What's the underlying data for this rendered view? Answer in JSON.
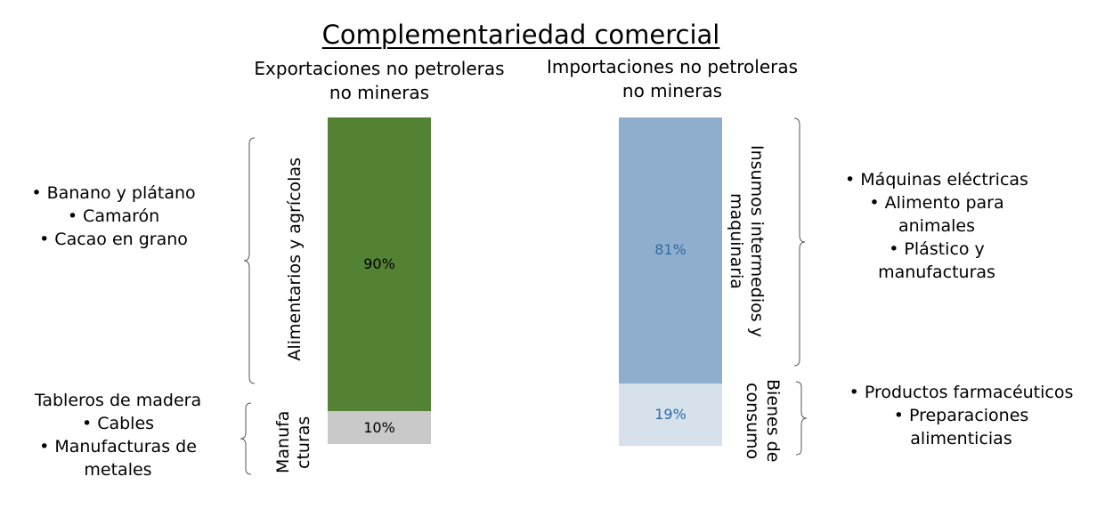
{
  "chart_data": {
    "type": "bar",
    "title": "Complementariedad comercial",
    "stacked": true,
    "normalized_percent": true,
    "bars": [
      {
        "name": "Exportaciones no petroleras no mineras",
        "segments": [
          {
            "name": "Alimentarios y agrícolas",
            "value": 90,
            "label": "90%",
            "color": "#548235"
          },
          {
            "name": "Manufacturas",
            "display_name": "Manufa cturas",
            "value": 10,
            "label": "10%",
            "color": "#c9c9c9"
          }
        ]
      },
      {
        "name": "Importaciones no petroleras no mineras",
        "segments": [
          {
            "name": "Insumos intermedios y maquinaria",
            "value": 81,
            "label": "81%",
            "color": "#8faecd"
          },
          {
            "name": "Bienes de consumo",
            "value": 19,
            "label": "19%",
            "color": "#d6e1ec"
          }
        ]
      }
    ],
    "label_colors": {
      "exports": "#000000",
      "imports": "#2e6ca4"
    }
  },
  "annotations": {
    "alimentarios": [
      "• Banano y plátano",
      "• Camarón",
      "• Cacao en grano"
    ],
    "manufacturas": [
      "Tableros de madera",
      "• Cables",
      "• Manufacturas de",
      "metales"
    ],
    "insumos": [
      "• Máquinas eléctricas",
      "• Alimento para",
      "animales",
      "• Plástico y",
      "manufacturas"
    ],
    "bienes": [
      "• Productos farmacéuticos",
      "• Preparaciones",
      "alimenticias"
    ]
  }
}
